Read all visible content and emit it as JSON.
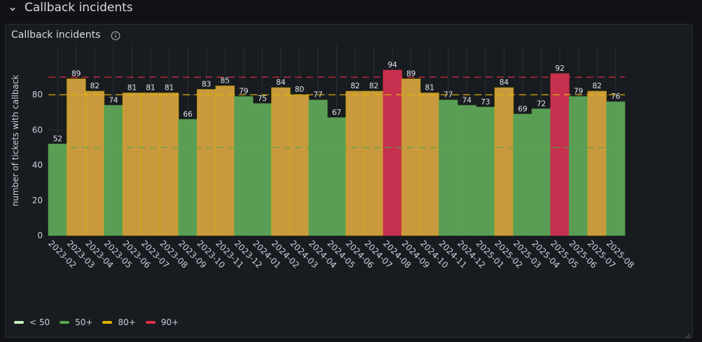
{
  "row": {
    "title": "Callback incidents"
  },
  "panel": {
    "title": "Callback incidents"
  },
  "colors": {
    "background": "#181b1f",
    "grid": "#2c2f35",
    "axis_text": "#ccccdc",
    "label_text": "#e4e5ea",
    "green": "#56a64b",
    "yellow": "#e0b400",
    "red": "#e02f44",
    "light_green": "#c8f2c2",
    "bar_green": "#5a9e55",
    "bar_yellow": "#c99a3d",
    "bar_red": "#c5304f"
  },
  "chart_data": {
    "type": "bar",
    "title": "Callback incidents",
    "ylabel": "number of tickets with callback",
    "xlabel": "",
    "ylim": [
      0,
      100
    ],
    "yticks": [
      0,
      20,
      40,
      60,
      80
    ],
    "grid": true,
    "legend_position": "bottom-left",
    "categories": [
      "2023-02",
      "2023-03",
      "2023-04",
      "2023-05",
      "2023-06",
      "2023-07",
      "2023-08",
      "2023-09",
      "2023-10",
      "2023-11",
      "2023-12",
      "2024-01",
      "2024-02",
      "2024-03",
      "2024-04",
      "2024-05",
      "2024-06",
      "2024-07",
      "2024-08",
      "2024-09",
      "2024-10",
      "2024-11",
      "2024-12",
      "2025-01",
      "2025-02",
      "2025-03",
      "2025-04",
      "2025-05",
      "2025-06",
      "2025-07",
      "2025-08"
    ],
    "values": [
      52,
      89,
      82,
      74,
      81,
      81,
      81,
      66,
      83,
      85,
      79,
      75,
      84,
      80,
      77,
      67,
      82,
      82,
      94,
      89,
      81,
      77,
      74,
      73,
      84,
      69,
      72,
      92,
      79,
      82,
      76
    ],
    "thresholds": [
      {
        "label": "< 50",
        "value": null,
        "color": "light_green"
      },
      {
        "label": "50+",
        "value": 50,
        "color": "green"
      },
      {
        "label": "80+",
        "value": 80,
        "color": "yellow"
      },
      {
        "label": "90+",
        "value": 90,
        "color": "red"
      }
    ]
  },
  "legend": [
    {
      "label": "< 50",
      "color": "#c8f2c2"
    },
    {
      "label": "50+",
      "color": "#56a64b"
    },
    {
      "label": "80+",
      "color": "#e0b400"
    },
    {
      "label": "90+",
      "color": "#e02f44"
    }
  ],
  "icons": {
    "row_toggle": "chevron-down-icon",
    "info": "info-icon",
    "resize": "resize-handle-icon"
  }
}
